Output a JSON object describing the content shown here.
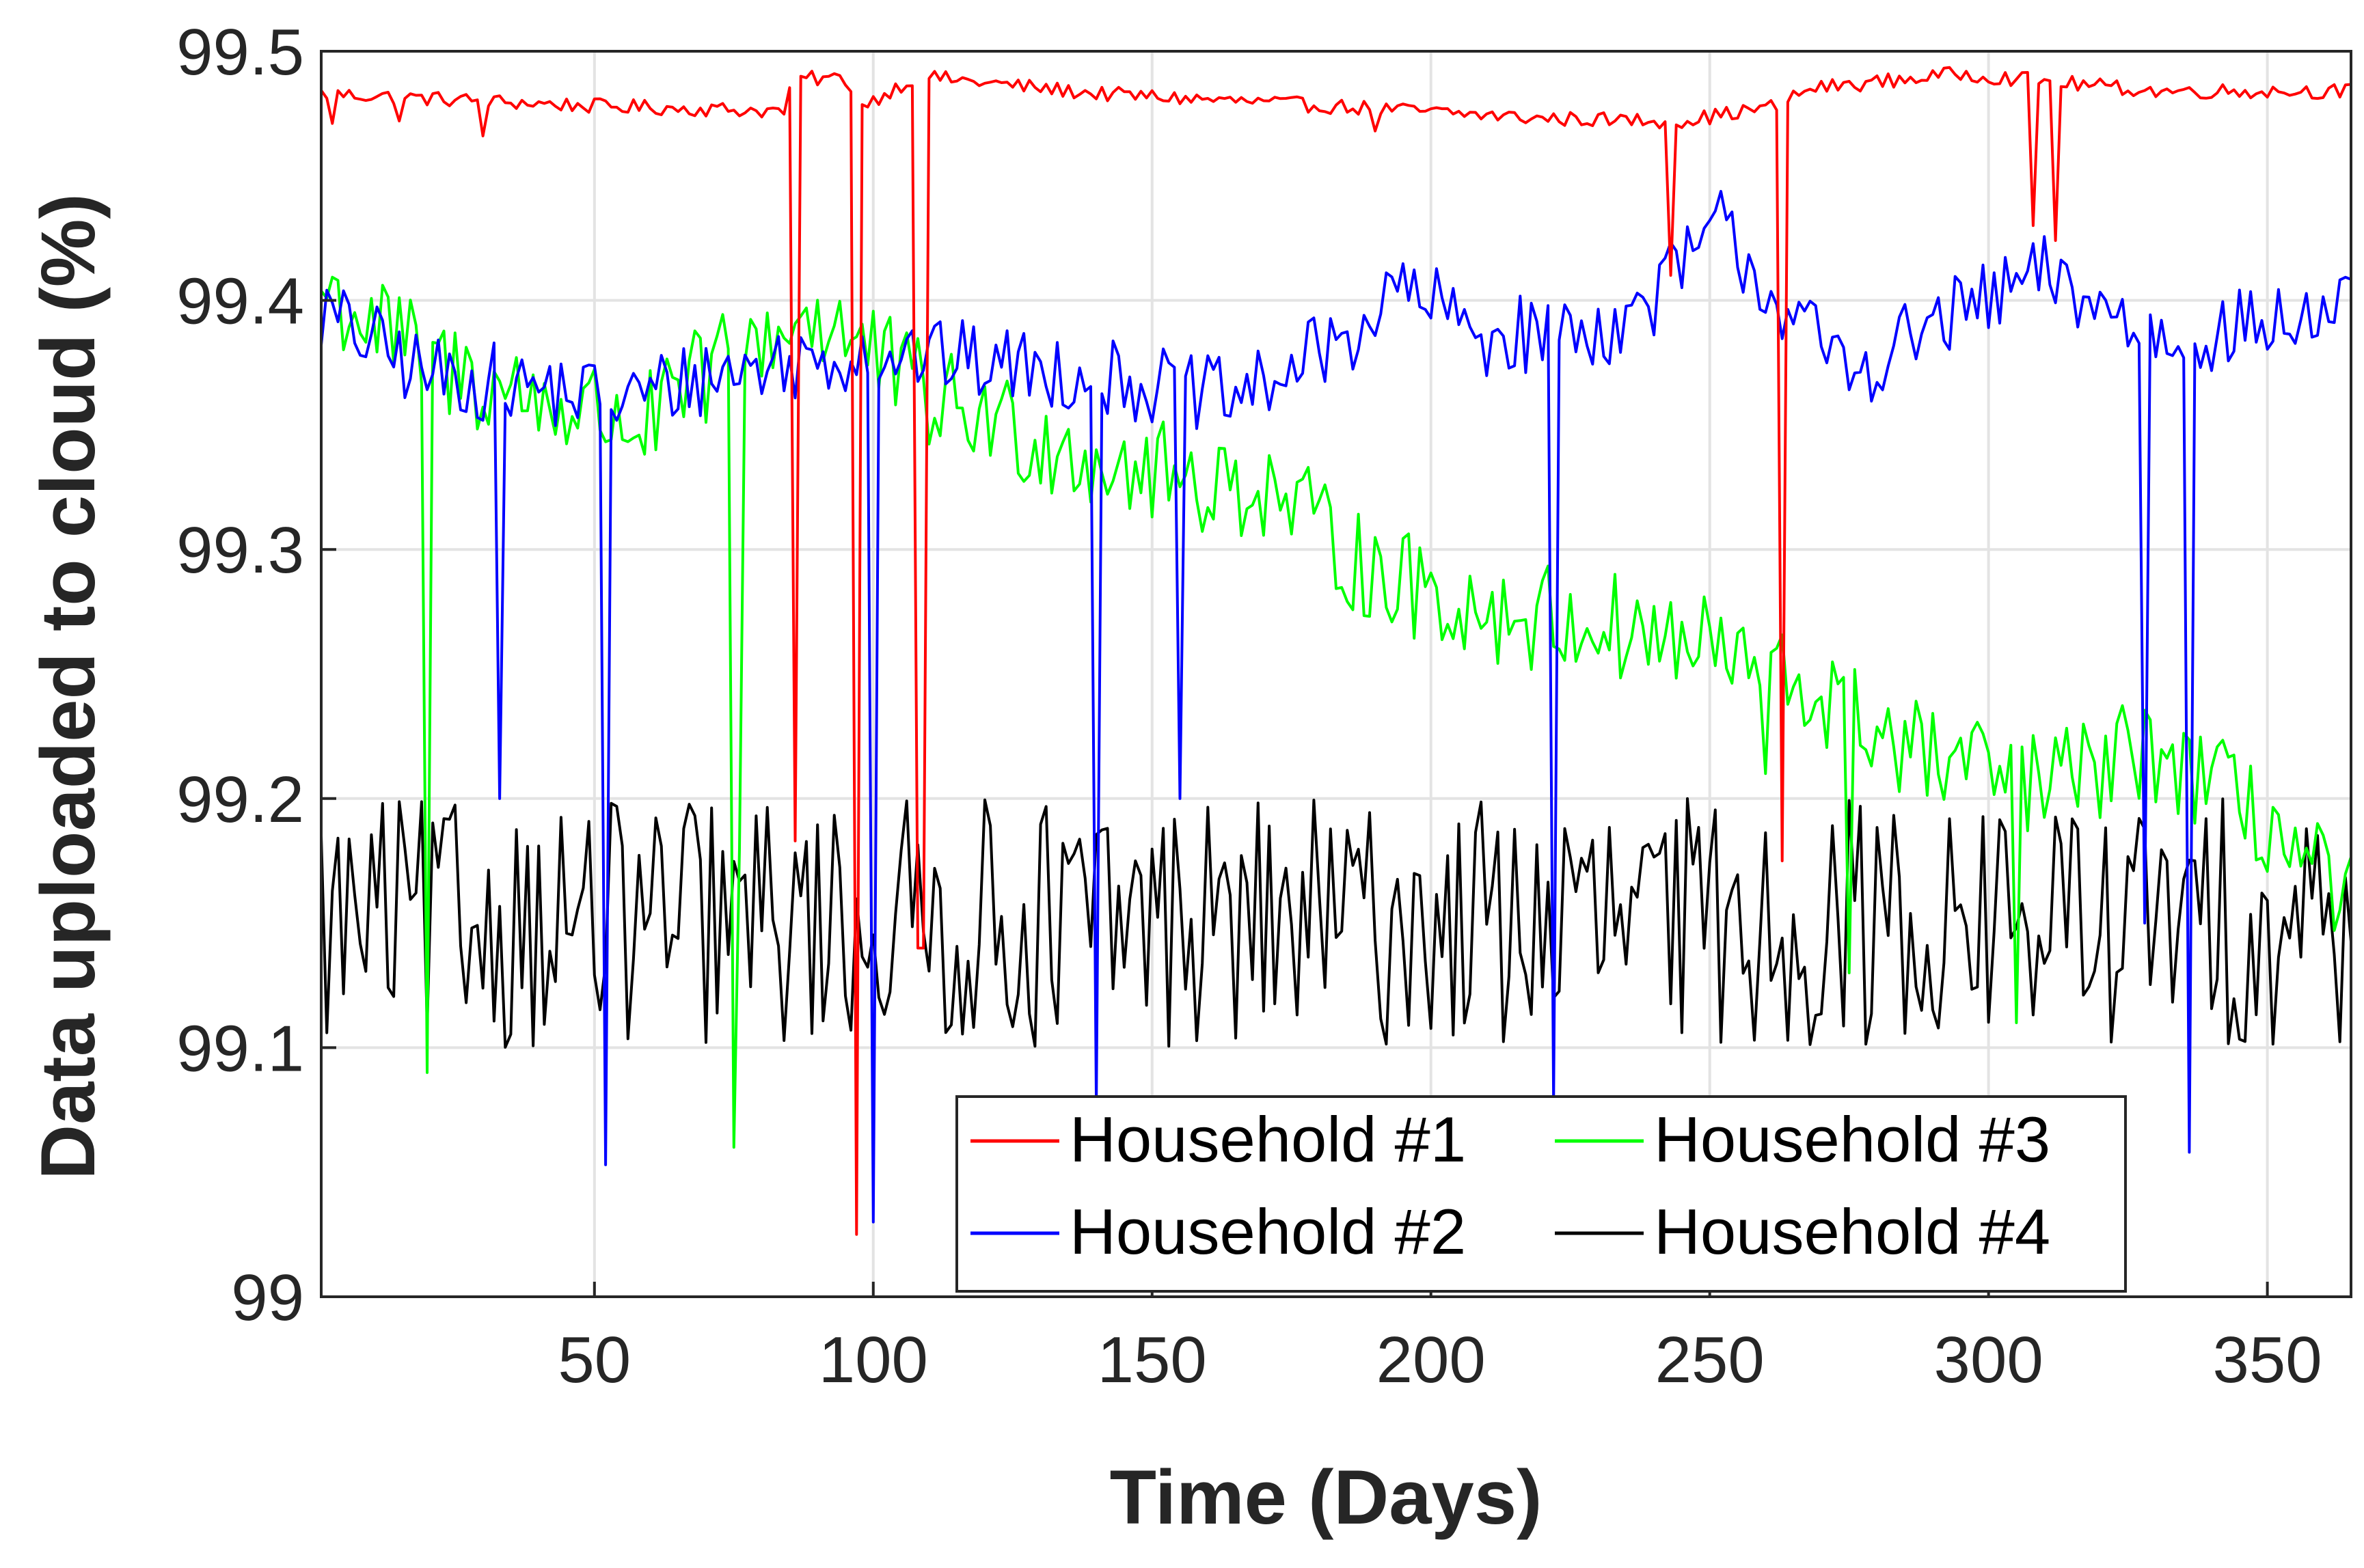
{
  "chart_data": {
    "type": "line",
    "title": "",
    "xlabel": "Time (Days)",
    "ylabel": "Data uploaded to cloud (%)",
    "xlim": [
      1,
      365
    ],
    "ylim": [
      99,
      99.5
    ],
    "xticks": [
      50,
      100,
      150,
      200,
      250,
      300,
      350
    ],
    "yticks": [
      99,
      99.1,
      99.2,
      99.3,
      99.4,
      99.5
    ],
    "xtick_labels": [
      "50",
      "100",
      "150",
      "200",
      "250",
      "300",
      "350"
    ],
    "ytick_labels": [
      "99",
      "99.1",
      "99.2",
      "99.3",
      "99.4",
      "99.5"
    ],
    "grid": true,
    "legend_position": "bottom-right",
    "series": [
      {
        "name": "Household #1",
        "color": "#ff0000",
        "baseline": [
          [
            1,
            99.483
          ],
          [
            50,
            99.478
          ],
          [
            84,
            99.476
          ],
          [
            86,
            99.489
          ],
          [
            95,
            99.489
          ],
          [
            98,
            99.478
          ],
          [
            108,
            99.49
          ],
          [
            140,
            99.483
          ],
          [
            190,
            99.477
          ],
          [
            220,
            99.473
          ],
          [
            245,
            99.472
          ],
          [
            262,
            99.478
          ],
          [
            268,
            99.485
          ],
          [
            295,
            99.491
          ],
          [
            330,
            99.484
          ],
          [
            365,
            99.484
          ]
        ],
        "noise": 0.003,
        "dips": [
          [
            3,
            99.471
          ],
          [
            15,
            99.472
          ],
          [
            30,
            99.466
          ],
          [
            86,
            99.183
          ],
          [
            97,
            99.025
          ],
          [
            108,
            99.14
          ],
          [
            109,
            99.14
          ],
          [
            190,
            99.468
          ],
          [
            233,
            99.472
          ],
          [
            243,
            99.41
          ],
          [
            263,
            99.175
          ],
          [
            308,
            99.43
          ],
          [
            312,
            99.424
          ]
        ]
      },
      {
        "name": "Household #2",
        "color": "#0000ff",
        "baseline": [
          [
            1,
            99.395
          ],
          [
            20,
            99.37
          ],
          [
            40,
            99.365
          ],
          [
            55,
            99.36
          ],
          [
            70,
            99.37
          ],
          [
            100,
            99.38
          ],
          [
            120,
            99.375
          ],
          [
            140,
            99.37
          ],
          [
            165,
            99.36
          ],
          [
            185,
            99.385
          ],
          [
            195,
            99.405
          ],
          [
            210,
            99.385
          ],
          [
            235,
            99.39
          ],
          [
            252,
            99.43
          ],
          [
            262,
            99.4
          ],
          [
            275,
            99.37
          ],
          [
            290,
            99.39
          ],
          [
            310,
            99.41
          ],
          [
            330,
            99.385
          ],
          [
            350,
            99.39
          ],
          [
            365,
            99.395
          ]
        ],
        "noise": 0.016,
        "dips": [
          [
            33,
            99.2
          ],
          [
            52,
            99.053
          ],
          [
            100,
            99.03
          ],
          [
            140,
            99.077
          ],
          [
            155,
            99.2
          ],
          [
            222,
            99.078
          ],
          [
            328,
            99.15
          ],
          [
            336,
            99.058
          ]
        ]
      },
      {
        "name": "Household #3",
        "color": "#00ff00",
        "baseline": [
          [
            1,
            99.405
          ],
          [
            20,
            99.375
          ],
          [
            40,
            99.36
          ],
          [
            60,
            99.35
          ],
          [
            75,
            99.38
          ],
          [
            90,
            99.395
          ],
          [
            110,
            99.36
          ],
          [
            130,
            99.345
          ],
          [
            150,
            99.33
          ],
          [
            170,
            99.325
          ],
          [
            190,
            99.29
          ],
          [
            210,
            99.275
          ],
          [
            230,
            99.27
          ],
          [
            250,
            99.26
          ],
          [
            270,
            99.24
          ],
          [
            290,
            99.215
          ],
          [
            310,
            99.205
          ],
          [
            330,
            99.22
          ],
          [
            350,
            99.19
          ],
          [
            365,
            99.155
          ]
        ],
        "noise": 0.022,
        "dips": [
          [
            20,
            99.09
          ],
          [
            75,
            99.06
          ],
          [
            76,
            99.18
          ],
          [
            260,
            99.21
          ],
          [
            275,
            99.13
          ],
          [
            305,
            99.11
          ]
        ]
      },
      {
        "name": "Household #4",
        "color": "#000000",
        "baseline": [
          [
            1,
            99.15
          ],
          [
            365,
            99.15
          ]
        ],
        "noise": 0.05,
        "dips": []
      }
    ]
  }
}
